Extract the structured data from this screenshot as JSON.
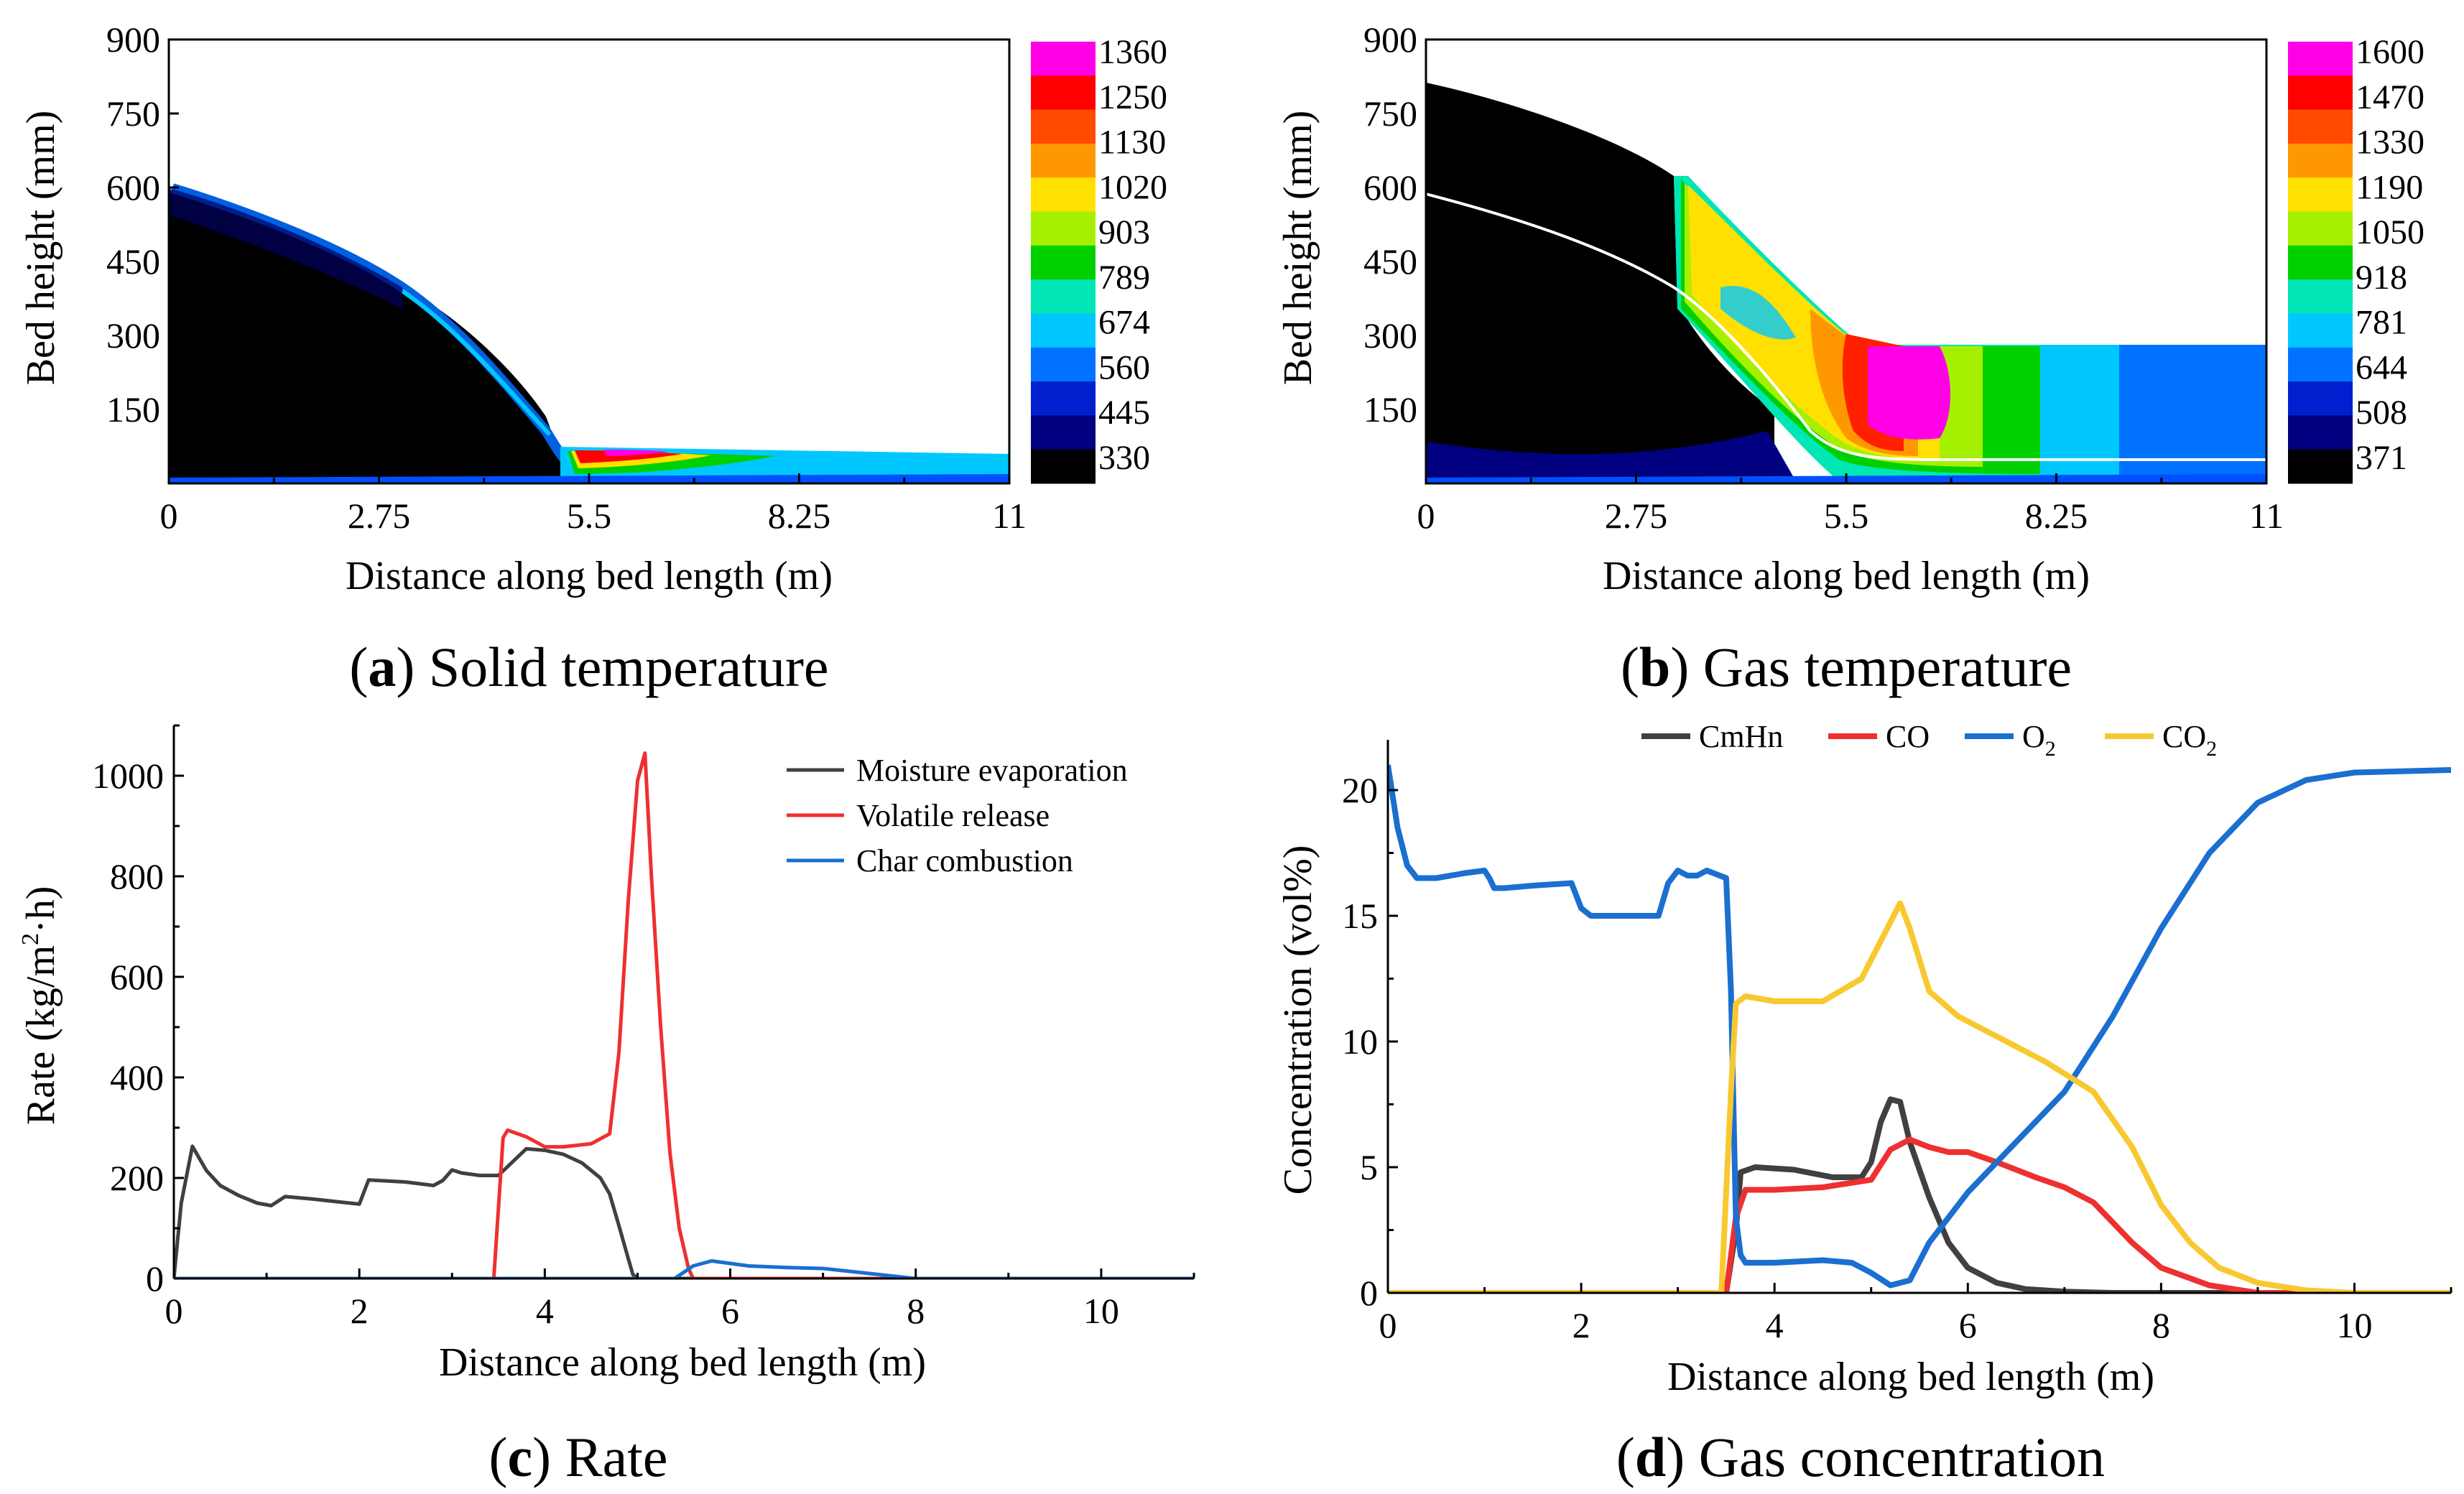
{
  "chart_data": [
    {
      "id": "a",
      "type": "heatmap",
      "caption_letter": "a",
      "caption_text": "Solid temperature",
      "xlabel": "Distance along bed length (m)",
      "ylabel": "Bed height (mm)",
      "xlim": [
        0,
        11
      ],
      "ylim": [
        0,
        900
      ],
      "xticks": [
        "0",
        "2.75",
        "5.5",
        "8.25",
        "11"
      ],
      "yticks": [
        "150",
        "300",
        "450",
        "600",
        "750",
        "900"
      ],
      "colorbar": [
        "1360",
        "1250",
        "1130",
        "1020",
        "903",
        "789",
        "674",
        "560",
        "445",
        "330"
      ],
      "colorbar_colors": [
        "#ff00e6",
        "#ff0000",
        "#ff4a00",
        "#ff9800",
        "#ffe000",
        "#a5f000",
        "#00d000",
        "#00e6b4",
        "#00c8ff",
        "#0072ff",
        "#0020d0",
        "#000080",
        "#000000"
      ]
    },
    {
      "id": "b",
      "type": "heatmap",
      "caption_letter": "b",
      "caption_text": "Gas temperature",
      "xlabel": "Distance along bed length (m)",
      "ylabel": "Bed height (mm)",
      "xlim": [
        0,
        11
      ],
      "ylim": [
        0,
        900
      ],
      "xticks": [
        "0",
        "2.75",
        "5.5",
        "8.25",
        "11"
      ],
      "yticks": [
        "150",
        "300",
        "450",
        "600",
        "750",
        "900"
      ],
      "colorbar": [
        "1600",
        "1470",
        "1330",
        "1190",
        "1050",
        "918",
        "781",
        "644",
        "508",
        "371"
      ],
      "colorbar_colors": [
        "#ff00e6",
        "#ff0000",
        "#ff4a00",
        "#ff9800",
        "#ffe000",
        "#a5f000",
        "#00d000",
        "#00e6b4",
        "#00c8ff",
        "#0072ff",
        "#0020d0",
        "#000080",
        "#000000"
      ]
    },
    {
      "id": "c",
      "type": "line",
      "caption_letter": "c",
      "caption_text": "Rate",
      "xlabel": "Distance along bed length (m)",
      "ylabel_main": "Rate (kg/m",
      "ylabel_sup": "2",
      "ylabel_tail": "·h)",
      "xlim": [
        0,
        11
      ],
      "ylim": [
        0,
        1100
      ],
      "xticks": [
        0,
        2,
        4,
        6,
        8,
        10
      ],
      "yticks": [
        0,
        200,
        400,
        600,
        800,
        1000
      ],
      "series": [
        {
          "name": "Moisture evaporation",
          "color": "#404040",
          "x": [
            0,
            0.08,
            0.2,
            0.35,
            0.5,
            0.7,
            0.9,
            1.05,
            1.2,
            1.5,
            1.8,
            2.0,
            2.1,
            2.5,
            2.8,
            2.9,
            3.0,
            3.1,
            3.3,
            3.5,
            3.8,
            4.0,
            4.2,
            4.4,
            4.6,
            4.7,
            4.8,
            4.9,
            4.95,
            5.0,
            11.0
          ],
          "y": [
            0,
            150,
            263,
            215,
            185,
            165,
            150,
            145,
            163,
            158,
            152,
            148,
            196,
            192,
            185,
            195,
            216,
            210,
            205,
            205,
            258,
            255,
            247,
            230,
            200,
            168,
            105,
            40,
            8,
            0,
            0
          ]
        },
        {
          "name": "Volatile release",
          "color": "#ee3030",
          "x": [
            0,
            3.45,
            3.55,
            3.6,
            3.8,
            4.0,
            4.2,
            4.5,
            4.7,
            4.8,
            4.9,
            5.0,
            5.08,
            5.15,
            5.25,
            5.35,
            5.45,
            5.55,
            5.6,
            11.0
          ],
          "y": [
            0,
            0,
            280,
            295,
            282,
            262,
            262,
            268,
            288,
            450,
            750,
            990,
            1045,
            800,
            500,
            250,
            100,
            20,
            0,
            0
          ]
        },
        {
          "name": "Char combustion",
          "color": "#1a6fd0",
          "x": [
            0,
            5.4,
            5.6,
            5.8,
            6.0,
            6.2,
            6.6,
            7.0,
            7.5,
            8.0,
            11.0
          ],
          "y": [
            0,
            0,
            25,
            35,
            30,
            25,
            22,
            20,
            10,
            0,
            0
          ]
        }
      ]
    },
    {
      "id": "d",
      "type": "line",
      "caption_letter": "d",
      "caption_text": "Gas concentration",
      "xlabel": "Distance along bed length (m)",
      "ylabel": "Concentration (vol%)",
      "xlim": [
        0,
        11
      ],
      "ylim": [
        0,
        22
      ],
      "xticks": [
        0,
        2,
        4,
        6,
        8,
        10
      ],
      "yticks": [
        0,
        5,
        10,
        15,
        20
      ],
      "series": [
        {
          "name": "CmHn",
          "color": "#404040",
          "x": [
            0,
            3.5,
            3.6,
            3.65,
            3.8,
            4.2,
            4.6,
            4.9,
            5.0,
            5.1,
            5.2,
            5.3,
            5.4,
            5.6,
            5.8,
            6.0,
            6.3,
            6.6,
            7.0,
            7.5,
            11.0
          ],
          "y": [
            0,
            0,
            2.5,
            4.8,
            5.0,
            4.9,
            4.6,
            4.6,
            5.2,
            6.8,
            7.7,
            7.6,
            6.0,
            3.8,
            2.0,
            1.0,
            0.4,
            0.15,
            0.05,
            0,
            0
          ]
        },
        {
          "name": "CO",
          "color": "#ee3030",
          "x": [
            0,
            3.5,
            3.6,
            3.7,
            4.0,
            4.5,
            5.0,
            5.2,
            5.4,
            5.6,
            5.8,
            6.0,
            6.3,
            6.7,
            7.0,
            7.3,
            7.7,
            8.0,
            8.5,
            9.0,
            11.0
          ],
          "y": [
            0,
            0,
            3.0,
            4.1,
            4.1,
            4.2,
            4.5,
            5.7,
            6.1,
            5.8,
            5.6,
            5.6,
            5.2,
            4.6,
            4.2,
            3.6,
            2.0,
            1.0,
            0.3,
            0,
            0
          ]
        },
        {
          "name": "O",
          "name_sub": "2",
          "color": "#1a6fd0",
          "x": [
            0,
            0.1,
            0.2,
            0.3,
            0.5,
            0.8,
            1.0,
            1.05,
            1.1,
            1.2,
            1.5,
            1.9,
            2.0,
            2.1,
            2.3,
            2.8,
            2.9,
            3.0,
            3.1,
            3.2,
            3.3,
            3.5,
            3.55,
            3.6,
            3.65,
            3.7,
            4.0,
            4.5,
            4.8,
            5.0,
            5.2,
            5.4,
            5.6,
            6.0,
            6.5,
            7.0,
            7.5,
            8.0,
            8.5,
            9.0,
            9.5,
            10.0,
            11.0
          ],
          "y": [
            21,
            18.5,
            17.0,
            16.5,
            16.5,
            16.7,
            16.8,
            16.5,
            16.1,
            16.1,
            16.2,
            16.3,
            15.3,
            15.0,
            15.0,
            15.0,
            16.3,
            16.8,
            16.6,
            16.6,
            16.8,
            16.5,
            12.0,
            3.0,
            1.5,
            1.2,
            1.2,
            1.3,
            1.2,
            0.8,
            0.3,
            0.5,
            2.0,
            4.0,
            6.0,
            8.0,
            11.0,
            14.5,
            17.5,
            19.5,
            20.4,
            20.7,
            20.8
          ]
        },
        {
          "name": "CO",
          "name_sub": "2",
          "color": "#f8c830",
          "x": [
            0,
            3.45,
            3.5,
            3.55,
            3.6,
            3.7,
            4.0,
            4.5,
            4.9,
            5.1,
            5.3,
            5.4,
            5.6,
            5.9,
            6.3,
            6.8,
            7.3,
            7.7,
            8.0,
            8.3,
            8.6,
            9.0,
            9.5,
            10.0,
            11.0
          ],
          "y": [
            0,
            0,
            4.0,
            8.0,
            11.5,
            11.8,
            11.6,
            11.6,
            12.5,
            14.0,
            15.5,
            14.5,
            12.0,
            11.0,
            10.2,
            9.2,
            8.0,
            5.8,
            3.5,
            2.0,
            1.0,
            0.4,
            0.1,
            0,
            0
          ]
        }
      ]
    }
  ]
}
